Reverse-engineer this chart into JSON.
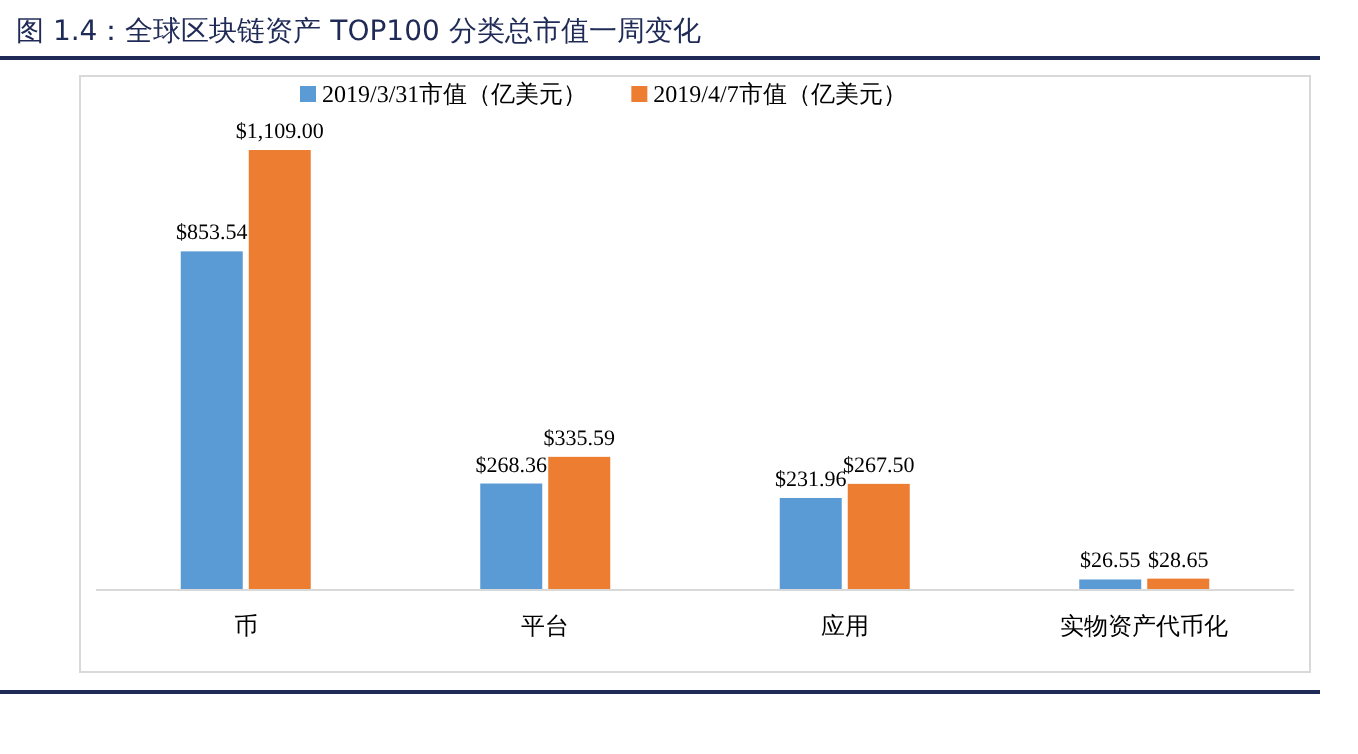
{
  "chart_data": {
    "type": "bar",
    "title": "图 1.4：全球区块链资产 TOP100 分类总市值一周变化",
    "categories": [
      "币",
      "平台",
      "应用",
      "实物资产代币化"
    ],
    "legend": "top",
    "series": [
      {
        "name": "2019/3/31市值（亿美元）",
        "color": "#5b9bd5",
        "values": [
          853.54,
          268.36,
          231.96,
          26.55
        ],
        "value_labels": [
          "$853.54",
          "$268.36",
          "$231.96",
          "$26.55"
        ]
      },
      {
        "name": "2019/4/7市值（亿美元）",
        "color": "#ed7d31",
        "values": [
          1109.0,
          335.59,
          267.5,
          28.65
        ],
        "value_labels": [
          "$1,109.00",
          "$335.59",
          "$267.50",
          "$28.65"
        ]
      }
    ]
  }
}
